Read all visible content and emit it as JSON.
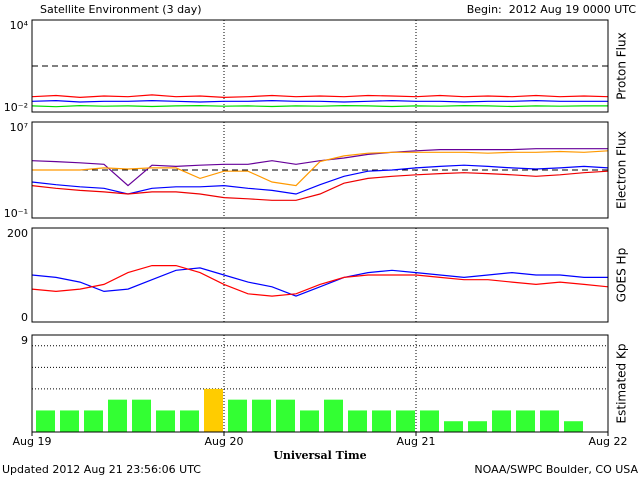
{
  "header": {
    "title": "Satellite Environment (3 day)",
    "begin": "Begin:  2012 Aug 19 0000 UTC"
  },
  "footer": {
    "updated": "Updated 2012 Aug 21 23:56:06 UTC",
    "credit": "NOAA/SWPC Boulder, CO USA"
  },
  "chart_data": [
    {
      "type": "line",
      "ylabel": "Proton Flux",
      "log": true,
      "ylim": [
        0.01,
        10000
      ],
      "yticks": [
        {
          "value": 10000,
          "label": "10⁴"
        },
        {
          "value": 0.01,
          "label": "10⁻²"
        }
      ],
      "threshold": 10,
      "x": [
        0,
        3,
        6,
        9,
        12,
        15,
        18,
        21,
        24,
        27,
        30,
        33,
        36,
        39,
        42,
        45,
        48,
        51,
        54,
        57,
        60,
        63,
        66,
        69,
        72
      ],
      "series": [
        {
          "color": "#ff0000",
          "values": [
            0.1,
            0.12,
            0.09,
            0.11,
            0.1,
            0.13,
            0.1,
            0.11,
            0.09,
            0.1,
            0.12,
            0.1,
            0.11,
            0.1,
            0.12,
            0.11,
            0.1,
            0.12,
            0.1,
            0.11,
            0.1,
            0.12,
            0.1,
            0.11,
            0.1
          ]
        },
        {
          "color": "#0000ff",
          "values": [
            0.05,
            0.055,
            0.045,
            0.05,
            0.05,
            0.055,
            0.05,
            0.045,
            0.05,
            0.05,
            0.055,
            0.05,
            0.05,
            0.045,
            0.05,
            0.055,
            0.05,
            0.05,
            0.045,
            0.05,
            0.05,
            0.055,
            0.05,
            0.05,
            0.05
          ]
        },
        {
          "color": "#00dd00",
          "values": [
            0.025,
            0.022,
            0.026,
            0.024,
            0.025,
            0.023,
            0.025,
            0.026,
            0.024,
            0.025,
            0.023,
            0.025,
            0.024,
            0.026,
            0.025,
            0.023,
            0.025,
            0.024,
            0.026,
            0.025,
            0.023,
            0.025,
            0.024,
            0.025,
            0.025
          ]
        }
      ]
    },
    {
      "type": "line",
      "ylabel": "Electron Flux",
      "log": true,
      "ylim": [
        0.1,
        10000000
      ],
      "yticks": [
        {
          "value": 10000000,
          "label": "10⁷"
        },
        {
          "value": 0.1,
          "label": "10⁻¹"
        }
      ],
      "threshold": 1000,
      "x": [
        0,
        3,
        6,
        9,
        12,
        15,
        18,
        21,
        24,
        27,
        30,
        33,
        36,
        39,
        42,
        45,
        48,
        51,
        54,
        57,
        60,
        63,
        66,
        69,
        72
      ],
      "series": [
        {
          "color": "#660099",
          "values": [
            6000,
            5000,
            4000,
            3000,
            50,
            2500,
            2000,
            2500,
            3000,
            3000,
            6000,
            3000,
            6000,
            10000,
            20000,
            30000,
            40000,
            50000,
            50000,
            50000,
            50000,
            60000,
            60000,
            60000,
            60000
          ]
        },
        {
          "color": "#ff9900",
          "values": [
            1000,
            1000,
            1000,
            1500,
            1200,
            1500,
            1500,
            200,
            800,
            800,
            100,
            50,
            5000,
            15000,
            25000,
            30000,
            30000,
            30000,
            30000,
            25000,
            30000,
            30000,
            35000,
            30000,
            40000
          ]
        },
        {
          "color": "#0000ff",
          "values": [
            100,
            60,
            40,
            30,
            10,
            30,
            40,
            40,
            50,
            30,
            20,
            10,
            60,
            300,
            800,
            1000,
            1500,
            2000,
            2500,
            2000,
            1500,
            1200,
            1500,
            2000,
            1500
          ]
        },
        {
          "color": "#ee0000",
          "values": [
            50,
            30,
            20,
            15,
            10,
            15,
            15,
            10,
            5,
            4,
            3,
            3,
            10,
            80,
            200,
            300,
            400,
            500,
            600,
            500,
            400,
            300,
            400,
            600,
            800
          ]
        }
      ]
    },
    {
      "type": "line",
      "ylabel": "GOES Hp",
      "log": false,
      "ylim": [
        0,
        200
      ],
      "yticks": [
        200,
        0
      ],
      "x": [
        0,
        3,
        6,
        9,
        12,
        15,
        18,
        21,
        24,
        27,
        30,
        33,
        36,
        39,
        42,
        45,
        48,
        51,
        54,
        57,
        60,
        63,
        66,
        69,
        72
      ],
      "series": [
        {
          "color": "#0000ff",
          "values": [
            100,
            95,
            85,
            65,
            70,
            90,
            110,
            115,
            100,
            85,
            75,
            55,
            75,
            95,
            105,
            110,
            105,
            100,
            95,
            100,
            105,
            100,
            100,
            95,
            95
          ]
        },
        {
          "color": "#ff0000",
          "values": [
            70,
            65,
            70,
            80,
            105,
            120,
            120,
            105,
            80,
            60,
            55,
            60,
            80,
            95,
            100,
            100,
            100,
            95,
            90,
            90,
            85,
            80,
            85,
            80,
            75
          ]
        }
      ]
    },
    {
      "type": "bar",
      "ylabel": "Estimated Kp",
      "log": false,
      "ylim": [
        0,
        9
      ],
      "yticks": [
        9
      ],
      "grid_lines": [
        4,
        6,
        8
      ],
      "xlabel": "Universal Time",
      "xlim": [
        0,
        72
      ],
      "xticks": [
        {
          "value": 0,
          "label": "Aug 19"
        },
        {
          "value": 24,
          "label": "Aug 20"
        },
        {
          "value": 48,
          "label": "Aug 21"
        },
        {
          "value": 72,
          "label": "Aug 22"
        }
      ],
      "x": [
        0,
        3,
        6,
        9,
        12,
        15,
        18,
        21,
        24,
        27,
        30,
        33,
        36,
        39,
        42,
        45,
        48,
        51,
        54,
        57,
        60,
        63,
        66,
        69
      ],
      "values": [
        2,
        2,
        2,
        3,
        3,
        2,
        2,
        4,
        3,
        3,
        3,
        2,
        3,
        2,
        2,
        2,
        2,
        1,
        1,
        2,
        2,
        2,
        1,
        null
      ],
      "colors": [
        "#33ff33",
        "#33ff33",
        "#33ff33",
        "#33ff33",
        "#33ff33",
        "#33ff33",
        "#33ff33",
        "#ffcc00",
        "#33ff33",
        "#33ff33",
        "#33ff33",
        "#33ff33",
        "#33ff33",
        "#33ff33",
        "#33ff33",
        "#33ff33",
        "#33ff33",
        "#33ff33",
        "#33ff33",
        "#33ff33",
        "#33ff33",
        "#33ff33",
        "#33ff33",
        null
      ]
    }
  ]
}
